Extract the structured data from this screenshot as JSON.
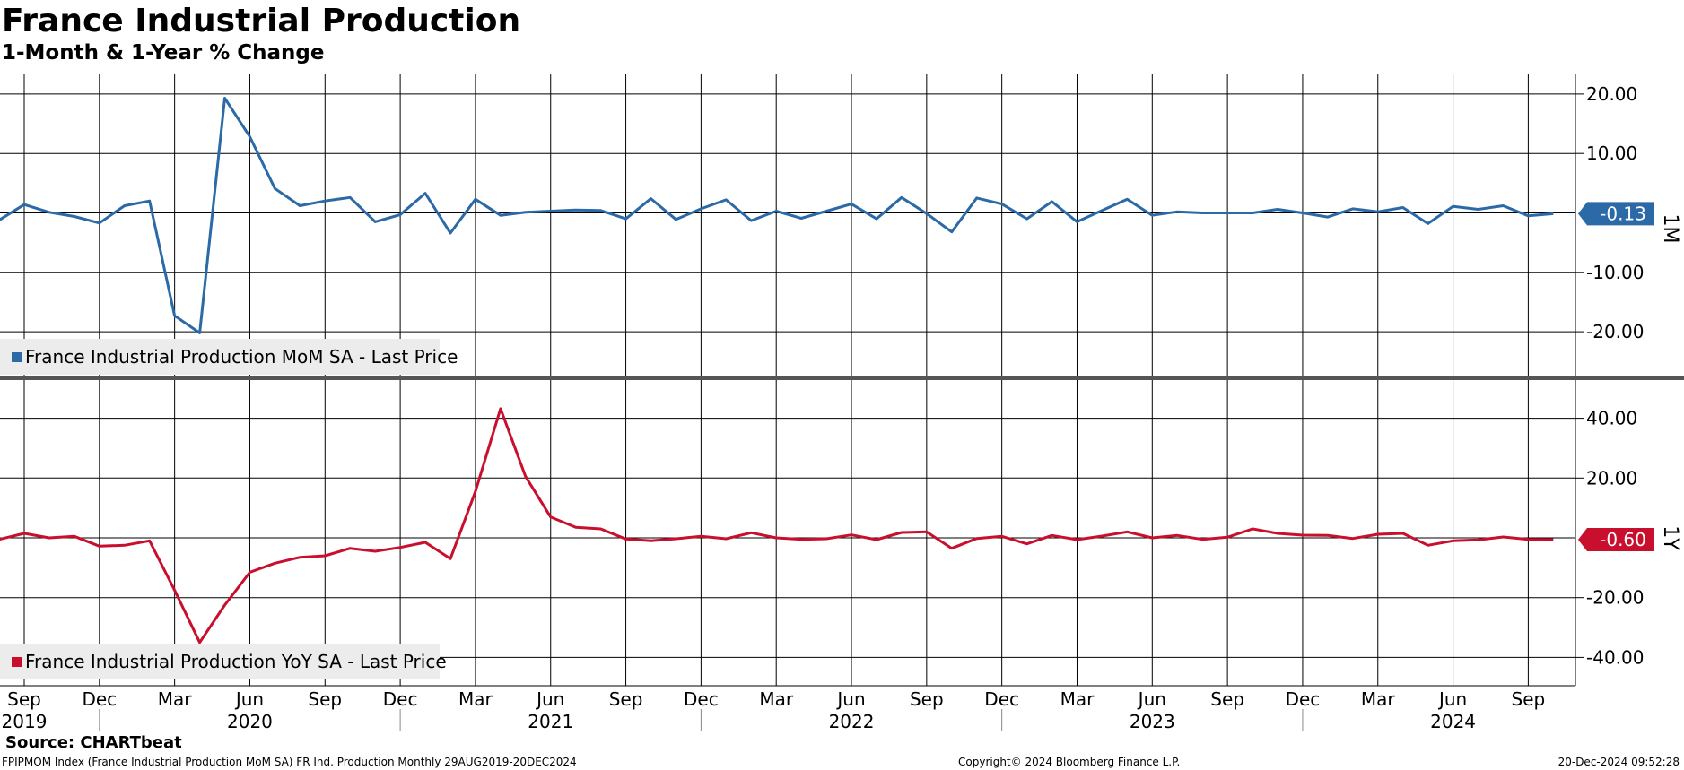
{
  "header": {
    "title": "France Industrial Production",
    "subtitle": "1-Month & 1-Year % Change"
  },
  "footer": {
    "source": "Source: CHARTbeat",
    "description": "FPIPMOM Index (France Industrial Production MoM SA) FR Ind. Production  Monthly 29AUG2019-20DEC2024",
    "copyright": "Copyright© 2024 Bloomberg Finance L.P.",
    "timestamp": "20-Dec-2024 09:52:28"
  },
  "colors": {
    "mom": "#2b6aa6",
    "yoy": "#c8102e",
    "grid": "#000000",
    "divider": "#555555",
    "legend_bg": "#ececec"
  },
  "chart_data": [
    {
      "type": "line",
      "panel_label": "1M",
      "legend": "France Industrial Production MoM SA - Last Price",
      "last_value_label": "-0.13",
      "ylim": [
        -28,
        23
      ],
      "yticks": [
        20,
        10,
        -10,
        -20
      ],
      "ytick_labels": [
        "20.00",
        "10.00",
        "-10.00",
        "-20.00"
      ],
      "series": [
        {
          "name": "France Industrial Production MoM SA - Last Price",
          "x": [
            "2019-08",
            "2019-09",
            "2019-10",
            "2019-11",
            "2019-12",
            "2020-01",
            "2020-02",
            "2020-03",
            "2020-04",
            "2020-05",
            "2020-06",
            "2020-07",
            "2020-08",
            "2020-09",
            "2020-10",
            "2020-11",
            "2020-12",
            "2021-01",
            "2021-02",
            "2021-03",
            "2021-04",
            "2021-05",
            "2021-06",
            "2021-07",
            "2021-08",
            "2021-09",
            "2021-10",
            "2021-11",
            "2021-12",
            "2022-01",
            "2022-02",
            "2022-03",
            "2022-04",
            "2022-05",
            "2022-06",
            "2022-07",
            "2022-08",
            "2022-09",
            "2022-10",
            "2022-11",
            "2022-12",
            "2023-01",
            "2023-02",
            "2023-03",
            "2023-04",
            "2023-05",
            "2023-06",
            "2023-07",
            "2023-08",
            "2023-09",
            "2023-10",
            "2023-11",
            "2023-12",
            "2024-01",
            "2024-02",
            "2024-03",
            "2024-04",
            "2024-05",
            "2024-06",
            "2024-07",
            "2024-08",
            "2024-09",
            "2024-10"
          ],
          "values": [
            -1.2,
            1.4,
            0.1,
            -0.6,
            -1.7,
            1.2,
            2.0,
            -17.3,
            -20.2,
            19.3,
            12.8,
            4.1,
            1.2,
            2.0,
            2.6,
            -1.5,
            -0.3,
            3.3,
            -3.4,
            2.3,
            -0.4,
            0.1,
            0.3,
            0.5,
            0.4,
            -1.0,
            2.4,
            -1.1,
            0.7,
            2.2,
            -1.3,
            0.3,
            -0.9,
            0.3,
            1.5,
            -1.0,
            2.6,
            -0.1,
            -3.2,
            2.5,
            1.5,
            -1.0,
            1.9,
            -1.5,
            0.4,
            2.3,
            -0.4,
            0.2,
            0.0,
            0.0,
            0.0,
            0.6,
            0.0,
            -0.7,
            0.7,
            0.2,
            0.9,
            -1.8,
            1.1,
            0.6,
            1.2,
            -0.5,
            -0.13
          ]
        }
      ]
    },
    {
      "type": "line",
      "panel_label": "1Y",
      "legend": "France Industrial Production YoY SA - Last Price",
      "last_value_label": "-0.60",
      "ylim": [
        -50,
        50
      ],
      "yticks": [
        40,
        20,
        -20,
        -40
      ],
      "ytick_labels": [
        "40.00",
        "20.00",
        "-20.00",
        "-40.00"
      ],
      "series": [
        {
          "name": "France Industrial Production YoY SA - Last Price",
          "x": [
            "2019-08",
            "2019-09",
            "2019-10",
            "2019-11",
            "2019-12",
            "2020-01",
            "2020-02",
            "2020-03",
            "2020-04",
            "2020-05",
            "2020-06",
            "2020-07",
            "2020-08",
            "2020-09",
            "2020-10",
            "2020-11",
            "2020-12",
            "2021-01",
            "2021-02",
            "2021-03",
            "2021-04",
            "2021-05",
            "2021-06",
            "2021-07",
            "2021-08",
            "2021-09",
            "2021-10",
            "2021-11",
            "2021-12",
            "2022-01",
            "2022-02",
            "2022-03",
            "2022-04",
            "2022-05",
            "2022-06",
            "2022-07",
            "2022-08",
            "2022-09",
            "2022-10",
            "2022-11",
            "2022-12",
            "2023-01",
            "2023-02",
            "2023-03",
            "2023-04",
            "2023-05",
            "2023-06",
            "2023-07",
            "2023-08",
            "2023-09",
            "2023-10",
            "2023-11",
            "2023-12",
            "2024-01",
            "2024-02",
            "2024-03",
            "2024-04",
            "2024-05",
            "2024-06",
            "2024-07",
            "2024-08",
            "2024-09",
            "2024-10"
          ],
          "values": [
            -0.5,
            1.5,
            0.0,
            0.5,
            -2.8,
            -2.5,
            -1.0,
            -17.5,
            -35.0,
            -22.5,
            -11.5,
            -8.5,
            -6.5,
            -6.0,
            -3.5,
            -4.5,
            -3.2,
            -1.5,
            -7.0,
            15.5,
            43.2,
            20.5,
            7.0,
            3.5,
            3.0,
            -0.4,
            -1.0,
            -0.3,
            0.5,
            -0.3,
            1.7,
            0.0,
            -0.5,
            -0.3,
            1.0,
            -0.6,
            1.8,
            2.0,
            -3.5,
            -0.2,
            0.5,
            -2.0,
            0.8,
            -0.6,
            0.6,
            2.0,
            0.0,
            0.8,
            -0.5,
            0.2,
            3.0,
            1.5,
            0.9,
            0.8,
            -0.2,
            1.2,
            1.5,
            -2.5,
            -1.0,
            -0.7,
            0.3,
            -0.5,
            -0.6
          ]
        }
      ]
    }
  ],
  "x_axis": {
    "month_ticks": [
      {
        "x": "2019-09",
        "label": "Sep"
      },
      {
        "x": "2019-12",
        "label": "Dec"
      },
      {
        "x": "2020-03",
        "label": "Mar"
      },
      {
        "x": "2020-06",
        "label": "Jun"
      },
      {
        "x": "2020-09",
        "label": "Sep"
      },
      {
        "x": "2020-12",
        "label": "Dec"
      },
      {
        "x": "2021-03",
        "label": "Mar"
      },
      {
        "x": "2021-06",
        "label": "Jun"
      },
      {
        "x": "2021-09",
        "label": "Sep"
      },
      {
        "x": "2021-12",
        "label": "Dec"
      },
      {
        "x": "2022-03",
        "label": "Mar"
      },
      {
        "x": "2022-06",
        "label": "Jun"
      },
      {
        "x": "2022-09",
        "label": "Sep"
      },
      {
        "x": "2022-12",
        "label": "Dec"
      },
      {
        "x": "2023-03",
        "label": "Mar"
      },
      {
        "x": "2023-06",
        "label": "Jun"
      },
      {
        "x": "2023-09",
        "label": "Sep"
      },
      {
        "x": "2023-12",
        "label": "Dec"
      },
      {
        "x": "2024-03",
        "label": "Mar"
      },
      {
        "x": "2024-06",
        "label": "Jun"
      },
      {
        "x": "2024-09",
        "label": "Sep"
      }
    ],
    "year_labels": [
      "2019",
      "2020",
      "2021",
      "2022",
      "2023",
      "2024"
    ]
  }
}
